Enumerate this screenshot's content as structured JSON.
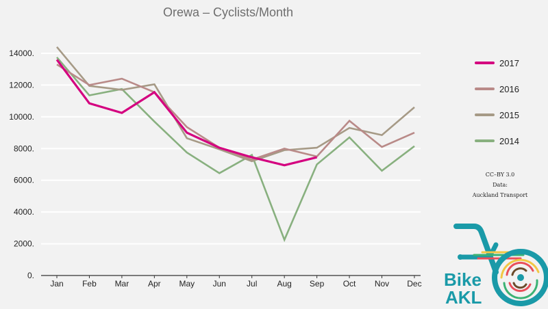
{
  "chart_data": {
    "type": "line",
    "title": "Orewa – Cyclists/Month",
    "xlabel": "",
    "ylabel": "",
    "categories": [
      "Jan",
      "Feb",
      "Mar",
      "Apr",
      "May",
      "Jun",
      "Jul",
      "Aug",
      "Sep",
      "Oct",
      "Nov",
      "Dec"
    ],
    "ylim": [
      0,
      14000
    ],
    "yticks": [
      0,
      2000,
      4000,
      6000,
      8000,
      10000,
      12000,
      14000
    ],
    "ytick_labels": [
      "0.",
      "2000.",
      "4000.",
      "6000.",
      "8000.",
      "10000.",
      "12000.",
      "14000."
    ],
    "grid": true,
    "legend_position": "right",
    "series": [
      {
        "name": "2017",
        "color": "#d4007f",
        "values": [
          13600,
          10850,
          10250,
          11550,
          9000,
          8050,
          7450,
          6950,
          7450,
          null,
          null,
          null
        ]
      },
      {
        "name": "2016",
        "color": "#b98a88",
        "values": [
          13300,
          12000,
          12400,
          11550,
          9350,
          8050,
          7300,
          8000,
          7500,
          9750,
          8100,
          9000
        ]
      },
      {
        "name": "2015",
        "color": "#a69a86",
        "values": [
          14400,
          11950,
          11700,
          12050,
          8650,
          7950,
          7200,
          7900,
          8050,
          9300,
          8850,
          10600
        ]
      },
      {
        "name": "2014",
        "color": "#88b07f",
        "values": [
          13750,
          11350,
          11750,
          9700,
          7750,
          6450,
          7600,
          2250,
          7000,
          8700,
          6600,
          8150
        ]
      }
    ]
  },
  "credits": {
    "license": "CC–BY 3.0",
    "data_label": "Data:",
    "source": "Auckland Transport"
  },
  "logo": {
    "text_line1": "Bike",
    "text_line2": "AKL",
    "color": "#1a9aa8"
  }
}
